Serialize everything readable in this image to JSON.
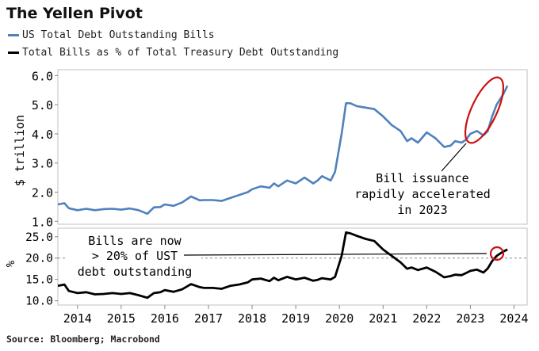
{
  "title": "The Yellen Pivot",
  "source": "Source: Bloomberg; Macrobond",
  "legend": [
    {
      "label": "US Total Debt Outstanding Bills",
      "color": "#4f81bd"
    },
    {
      "label": "Total Bills as % of Total Treasury Debt Outstanding",
      "color": "#000000"
    }
  ],
  "colors": {
    "blue": "#4f81bd",
    "black": "#000000",
    "circle": "#cc0000",
    "grid": "#999999"
  },
  "annotations": {
    "top": [
      "Bill issuance",
      "rapidly accelerated",
      "in 2023"
    ],
    "bottom": [
      "Bills are now",
      "> 20% of UST",
      "debt outstanding"
    ]
  },
  "chart_data": [
    {
      "type": "line",
      "ylabel": "$ trillion",
      "ylim": [
        0.9,
        6.2
      ],
      "yticks": [
        "1.0",
        "2.0",
        "3.0",
        "4.0",
        "5.0",
        "6.0"
      ],
      "ytick_values": [
        1.0,
        2.0,
        3.0,
        4.0,
        5.0,
        6.0
      ],
      "series": [
        {
          "name": "US Total Debt Outstanding Bills",
          "color": "#4f81bd",
          "x": [
            2013.55,
            2013.7,
            2013.8,
            2014.0,
            2014.2,
            2014.4,
            2014.6,
            2014.8,
            2015.0,
            2015.2,
            2015.4,
            2015.6,
            2015.75,
            2015.9,
            2016.0,
            2016.2,
            2016.4,
            2016.6,
            2016.8,
            2016.9,
            2017.1,
            2017.3,
            2017.5,
            2017.7,
            2017.9,
            2018.0,
            2018.2,
            2018.4,
            2018.5,
            2018.6,
            2018.8,
            2019.0,
            2019.2,
            2019.4,
            2019.5,
            2019.6,
            2019.8,
            2019.9,
            2020.05,
            2020.15,
            2020.25,
            2020.4,
            2020.6,
            2020.8,
            2021.0,
            2021.2,
            2021.4,
            2021.55,
            2021.65,
            2021.8,
            2022.0,
            2022.2,
            2022.4,
            2022.55,
            2022.65,
            2022.8,
            2022.9,
            2023.0,
            2023.15,
            2023.3,
            2023.4,
            2023.5,
            2023.6,
            2023.75,
            2023.85
          ],
          "values": [
            1.58,
            1.62,
            1.45,
            1.38,
            1.43,
            1.38,
            1.42,
            1.43,
            1.4,
            1.44,
            1.38,
            1.26,
            1.48,
            1.49,
            1.58,
            1.53,
            1.65,
            1.85,
            1.72,
            1.73,
            1.73,
            1.7,
            1.8,
            1.9,
            2.0,
            2.1,
            2.2,
            2.15,
            2.3,
            2.2,
            2.4,
            2.3,
            2.5,
            2.3,
            2.4,
            2.55,
            2.4,
            2.7,
            4.0,
            5.05,
            5.05,
            4.95,
            4.9,
            4.85,
            4.6,
            4.3,
            4.1,
            3.75,
            3.85,
            3.7,
            4.05,
            3.85,
            3.55,
            3.6,
            3.75,
            3.7,
            3.8,
            4.0,
            4.1,
            3.95,
            4.1,
            4.6,
            5.0,
            5.35,
            5.65
          ]
        }
      ]
    },
    {
      "type": "line",
      "ylim": [
        9.0,
        27.0
      ],
      "yticks": [
        "10.0",
        "15.0",
        "20.0",
        "25.0"
      ],
      "ytick_values": [
        10.0,
        15.0,
        20.0,
        25.0
      ],
      "reference_line": 20.0,
      "xticks": [
        "2014",
        "2015",
        "2016",
        "2017",
        "2018",
        "2019",
        "2020",
        "2021",
        "2022",
        "2023",
        "2024"
      ],
      "xtick_values": [
        2014,
        2015,
        2016,
        2017,
        2018,
        2019,
        2020,
        2021,
        2022,
        2023,
        2024
      ],
      "xlim": [
        2013.55,
        2024.3
      ],
      "series": [
        {
          "name": "Total Bills as % of Total Treasury Debt Outstanding",
          "color": "#000000",
          "x": [
            2013.55,
            2013.7,
            2013.8,
            2014.0,
            2014.2,
            2014.4,
            2014.6,
            2014.8,
            2015.0,
            2015.2,
            2015.4,
            2015.6,
            2015.75,
            2015.9,
            2016.0,
            2016.2,
            2016.4,
            2016.6,
            2016.8,
            2016.9,
            2017.1,
            2017.3,
            2017.5,
            2017.7,
            2017.9,
            2018.0,
            2018.2,
            2018.4,
            2018.5,
            2018.6,
            2018.8,
            2019.0,
            2019.2,
            2019.4,
            2019.5,
            2019.6,
            2019.8,
            2019.9,
            2020.05,
            2020.15,
            2020.25,
            2020.4,
            2020.6,
            2020.8,
            2021.0,
            2021.2,
            2021.4,
            2021.55,
            2021.65,
            2021.8,
            2022.0,
            2022.2,
            2022.4,
            2022.55,
            2022.65,
            2022.8,
            2022.9,
            2023.0,
            2023.15,
            2023.3,
            2023.4,
            2023.5,
            2023.6,
            2023.75,
            2023.85
          ],
          "values": [
            13.5,
            13.8,
            12.3,
            11.8,
            12.0,
            11.5,
            11.6,
            11.8,
            11.6,
            11.8,
            11.3,
            10.7,
            11.8,
            12.0,
            12.5,
            12.1,
            12.7,
            13.9,
            13.2,
            13.0,
            13.0,
            12.8,
            13.5,
            13.8,
            14.3,
            15.0,
            15.2,
            14.6,
            15.4,
            14.8,
            15.6,
            15.0,
            15.4,
            14.7,
            14.9,
            15.3,
            15.0,
            15.6,
            20.5,
            26.0,
            25.8,
            25.2,
            24.5,
            24.0,
            22.0,
            20.5,
            19.0,
            17.5,
            17.8,
            17.2,
            17.8,
            16.8,
            15.5,
            15.8,
            16.1,
            16.0,
            16.5,
            17.0,
            17.3,
            16.6,
            17.6,
            19.3,
            20.5,
            21.5,
            22.0
          ]
        }
      ]
    }
  ]
}
